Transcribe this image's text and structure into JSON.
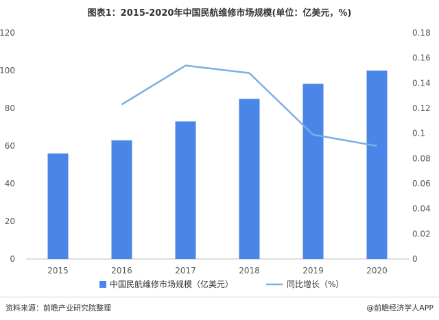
{
  "chart_data": {
    "type": "bar",
    "title": "图表1：2015-2020年中国民航维修市场规模(单位：亿美元，%)",
    "categories": [
      "2015",
      "2016",
      "2017",
      "2018",
      "2019",
      "2020"
    ],
    "series": [
      {
        "name": "中国民航维修市场规模（亿美元）",
        "type": "bar",
        "axis": "left",
        "color": "#4a86e8",
        "values": [
          56,
          63,
          73,
          85,
          93,
          100
        ]
      },
      {
        "name": "同比增长（%）",
        "type": "line",
        "axis": "right",
        "color": "#7aaee6",
        "values": [
          null,
          0.123,
          0.154,
          0.148,
          0.099,
          0.09
        ]
      }
    ],
    "y_left": {
      "min": 0,
      "max": 120,
      "ticks": [
        "0",
        "20",
        "40",
        "60",
        "80",
        "100",
        "120"
      ]
    },
    "y_right": {
      "min": 0,
      "max": 0.18,
      "ticks": [
        "0",
        "0.02",
        "0.04",
        "0.06",
        "0.08",
        "0.1",
        "0.12",
        "0.14",
        "0.16",
        "0.18"
      ]
    },
    "grid": false,
    "legend": "bottom"
  },
  "footer": {
    "source": "资料来源：前瞻产业研究院整理",
    "brand": "@前瞻经济学人APP"
  }
}
